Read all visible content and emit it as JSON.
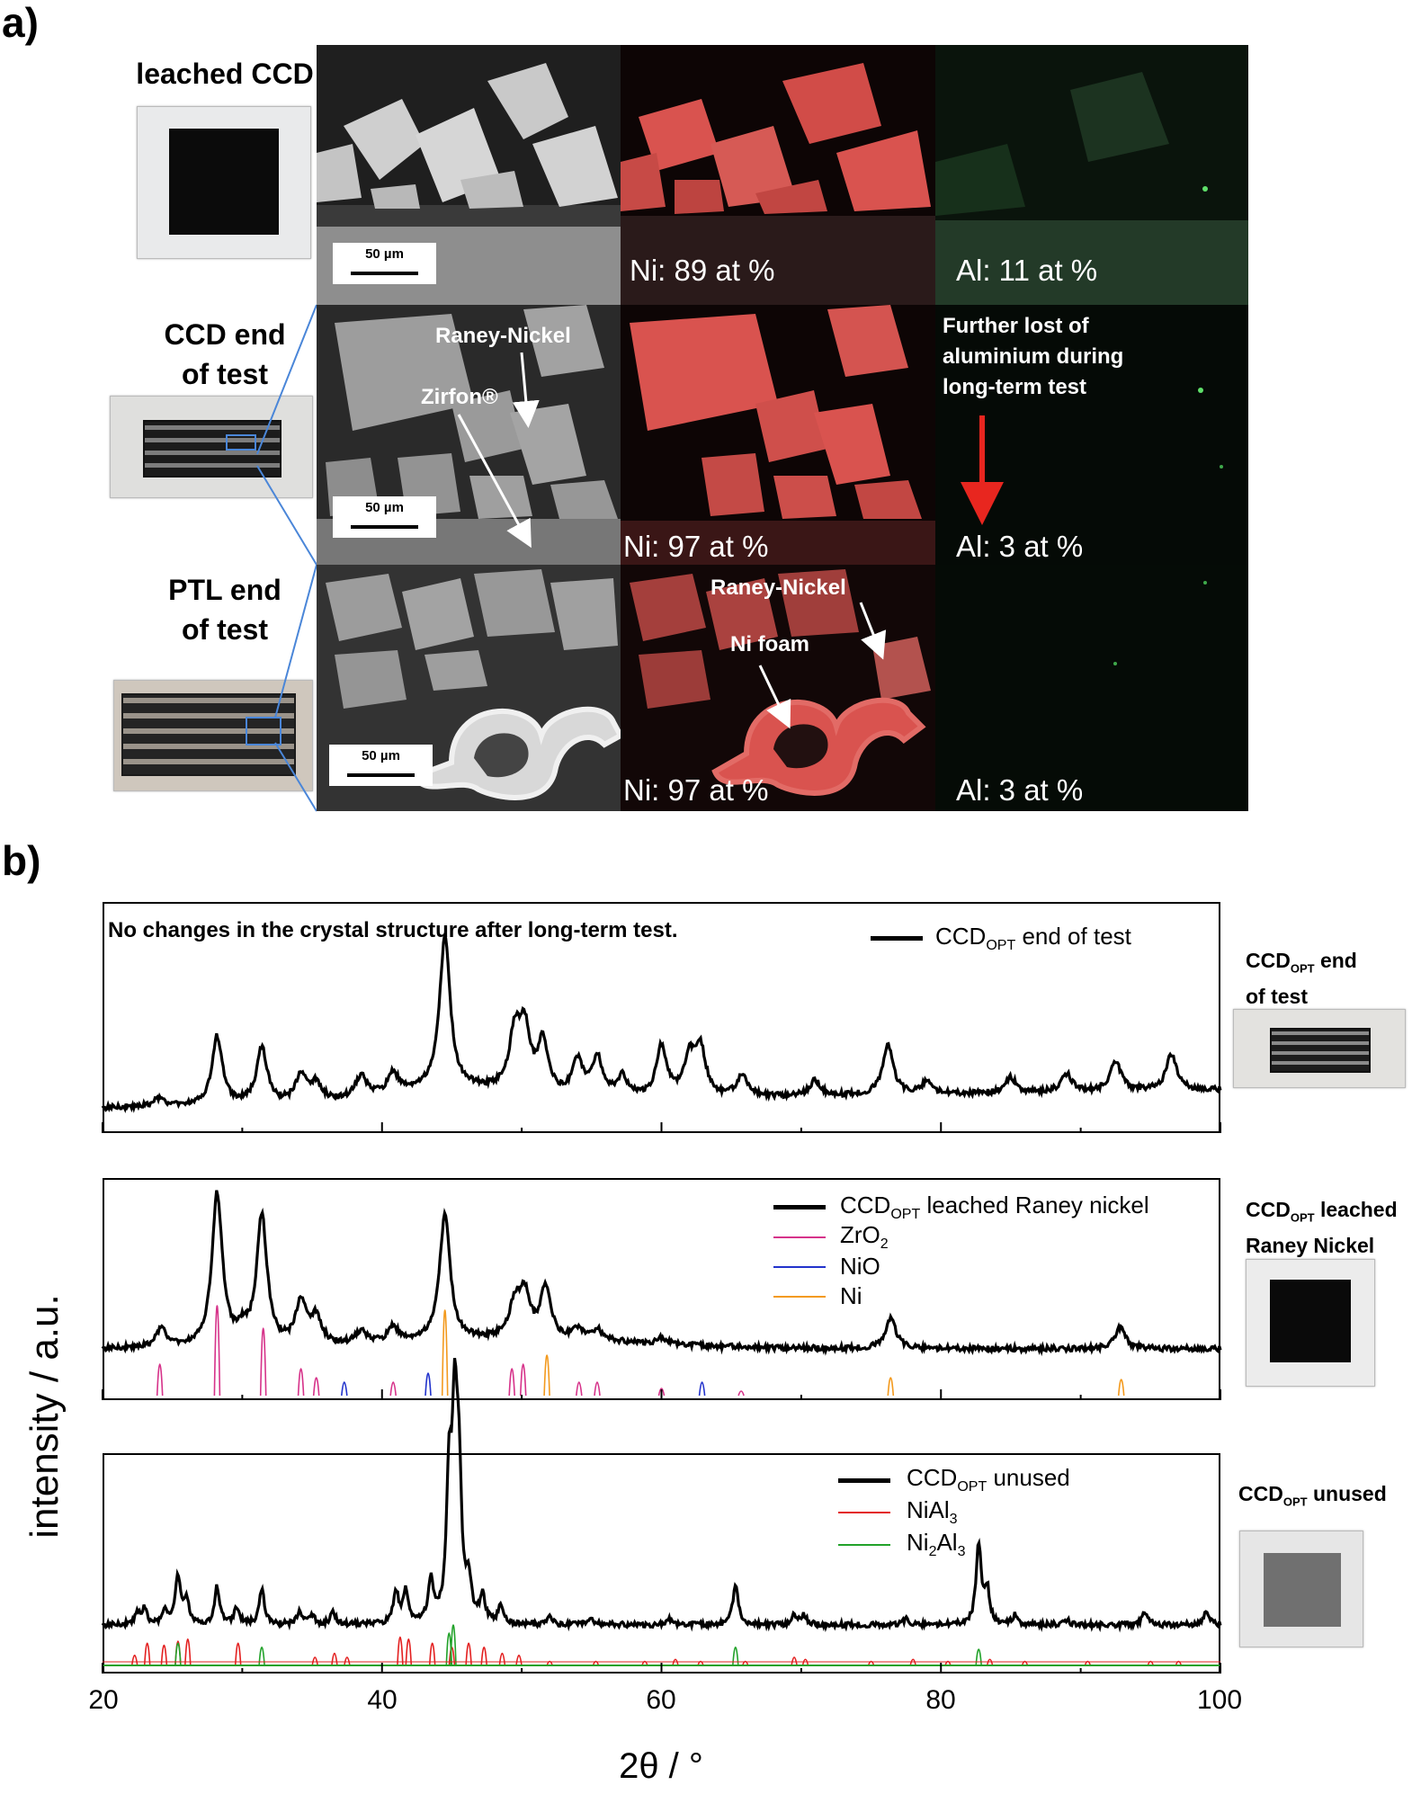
{
  "panel_a": {
    "label": "a)",
    "rows": [
      {
        "label_lines": [
          "leached CCD"
        ],
        "ni_text": "Ni: 89 at %",
        "al_text": "Al: 11 at %",
        "scale_bar": "50 µm"
      },
      {
        "label_lines": [
          "CCD end",
          "of test"
        ],
        "ni_text": "Ni: 97 at %",
        "al_text": "Al: 3 at %",
        "scale_bar": "50 µm",
        "annotations": {
          "raney": "Raney-Nickel",
          "zirfon": "Zirfon®"
        }
      },
      {
        "label_lines": [
          "PTL end",
          "of test"
        ],
        "ni_text": "Ni: 97 at %",
        "al_text": "Al: 3 at %",
        "scale_bar": "50 µm",
        "annotations": {
          "raney": "Raney-Nickel",
          "foam": "Ni foam"
        }
      }
    ],
    "note_lines": [
      "Further lost of",
      "aluminium during",
      "long-term test"
    ],
    "colors": {
      "ni_map": "#d9534f",
      "al_map": "#3aa35a",
      "arrow": "#e8261f",
      "box": "#4a86d8"
    }
  },
  "panel_b": {
    "label": "b)",
    "y_axis_label": "intensity / a.u.",
    "x_axis_label": "2θ / °",
    "x_ticks": [
      "20",
      "40",
      "60",
      "80",
      "100"
    ],
    "headline": "No changes in the crystal structure after long-term test.",
    "colors": {
      "data": "#000000",
      "ZrO2": "#d6338a",
      "NiO": "#2233cc",
      "Ni": "#f39a1e",
      "NiAl3": "#e32020",
      "Ni2Al3": "#22a22a"
    }
  },
  "chart_data": [
    {
      "type": "line",
      "xlim": [
        20,
        100
      ],
      "series": [
        {
          "name": "CCD_OPT end of test",
          "peaks": [
            [
              24,
              0.05
            ],
            [
              28.2,
              0.45
            ],
            [
              31.4,
              0.37
            ],
            [
              34.2,
              0.18
            ],
            [
              35.3,
              0.12
            ],
            [
              38.5,
              0.14
            ],
            [
              40.8,
              0.13
            ],
            [
              44.5,
              1.0
            ],
            [
              49.5,
              0.37
            ],
            [
              50.2,
              0.39
            ],
            [
              51.5,
              0.33
            ],
            [
              54,
              0.22
            ],
            [
              55.4,
              0.25
            ],
            [
              57.2,
              0.13
            ],
            [
              60,
              0.33
            ],
            [
              62,
              0.25
            ],
            [
              62.8,
              0.3
            ],
            [
              65.8,
              0.14
            ],
            [
              71,
              0.1
            ],
            [
              76.2,
              0.33
            ],
            [
              79,
              0.08
            ],
            [
              85,
              0.1
            ],
            [
              89,
              0.12
            ],
            [
              92.5,
              0.2
            ],
            [
              96.5,
              0.24
            ]
          ]
        }
      ]
    },
    {
      "type": "line",
      "xlim": [
        20,
        100
      ],
      "series": [
        {
          "name": "CCD_OPT leached Raney nickel",
          "peaks": [
            [
              24.2,
              0.12
            ],
            [
              28.2,
              1.0
            ],
            [
              30,
              0.08
            ],
            [
              31.4,
              0.85
            ],
            [
              34.2,
              0.28
            ],
            [
              35.3,
              0.18
            ],
            [
              38.5,
              0.08
            ],
            [
              40.8,
              0.1
            ],
            [
              44.5,
              0.83
            ],
            [
              49.5,
              0.22
            ],
            [
              50.2,
              0.28
            ],
            [
              51.7,
              0.33
            ],
            [
              54,
              0.06
            ],
            [
              55.4,
              0.07
            ],
            [
              60,
              0.04
            ],
            [
              76.4,
              0.2
            ],
            [
              92.8,
              0.14
            ]
          ]
        },
        {
          "name": "ZrO2",
          "sticks": [
            [
              24.1,
              0.35
            ],
            [
              28.2,
              1.0
            ],
            [
              31.5,
              0.75
            ],
            [
              34.2,
              0.3
            ],
            [
              35.3,
              0.2
            ],
            [
              40.8,
              0.15
            ],
            [
              49.3,
              0.3
            ],
            [
              50.1,
              0.35
            ],
            [
              54.1,
              0.15
            ],
            [
              55.4,
              0.15
            ],
            [
              60,
              0.08
            ],
            [
              65.7,
              0.05
            ]
          ]
        },
        {
          "name": "NiO",
          "sticks": [
            [
              37.3,
              0.15
            ],
            [
              43.3,
              0.25
            ],
            [
              62.9,
              0.15
            ]
          ]
        },
        {
          "name": "Ni",
          "sticks": [
            [
              44.5,
              0.95
            ],
            [
              51.8,
              0.45
            ],
            [
              76.4,
              0.2
            ],
            [
              92.9,
              0.18
            ]
          ]
        }
      ]
    },
    {
      "type": "line",
      "xlim": [
        20,
        100
      ],
      "series": [
        {
          "name": "CCD_OPT unused",
          "peaks": [
            [
              22.5,
              0.06
            ],
            [
              23,
              0.08
            ],
            [
              24.5,
              0.07
            ],
            [
              25.4,
              0.25
            ],
            [
              26,
              0.13
            ],
            [
              28.2,
              0.2
            ],
            [
              29.6,
              0.09
            ],
            [
              31.4,
              0.19
            ],
            [
              34.1,
              0.07
            ],
            [
              35,
              0.05
            ],
            [
              36.5,
              0.07
            ],
            [
              41,
              0.17
            ],
            [
              41.7,
              0.17
            ],
            [
              43.5,
              0.22
            ],
            [
              44.8,
              0.7
            ],
            [
              45.2,
              1.0
            ],
            [
              45.5,
              0.7
            ],
            [
              46.2,
              0.2
            ],
            [
              47.2,
              0.14
            ],
            [
              48.5,
              0.09
            ],
            [
              52,
              0.04
            ],
            [
              55,
              0.03
            ],
            [
              60.5,
              0.03
            ],
            [
              65.3,
              0.22
            ],
            [
              69.5,
              0.05
            ],
            [
              70.2,
              0.05
            ],
            [
              77.5,
              0.03
            ],
            [
              82.7,
              0.42
            ],
            [
              83.3,
              0.18
            ],
            [
              85.3,
              0.05
            ],
            [
              89,
              0.03
            ],
            [
              94.6,
              0.07
            ],
            [
              99,
              0.08
            ]
          ]
        },
        {
          "name": "NiAl3",
          "sticks": [
            [
              22.3,
              0.25
            ],
            [
              23.2,
              0.55
            ],
            [
              24.4,
              0.5
            ],
            [
              25.4,
              0.6
            ],
            [
              26.1,
              0.65
            ],
            [
              29.7,
              0.55
            ],
            [
              35.2,
              0.2
            ],
            [
              36.6,
              0.3
            ],
            [
              37.5,
              0.2
            ],
            [
              41.3,
              0.7
            ],
            [
              41.9,
              0.65
            ],
            [
              43.6,
              0.55
            ],
            [
              45,
              0.45
            ],
            [
              46.2,
              0.55
            ],
            [
              47.3,
              0.45
            ],
            [
              48.6,
              0.3
            ],
            [
              49.8,
              0.25
            ],
            [
              52,
              0.1
            ],
            [
              55.3,
              0.1
            ],
            [
              58.8,
              0.1
            ],
            [
              61,
              0.15
            ],
            [
              62.8,
              0.1
            ],
            [
              66,
              0.1
            ],
            [
              69.5,
              0.2
            ],
            [
              70.3,
              0.15
            ],
            [
              75,
              0.1
            ],
            [
              78,
              0.15
            ],
            [
              80.5,
              0.1
            ],
            [
              83.5,
              0.15
            ],
            [
              86,
              0.1
            ],
            [
              90.5,
              0.1
            ],
            [
              95,
              0.1
            ],
            [
              97,
              0.1
            ]
          ]
        },
        {
          "name": "Ni2Al3",
          "sticks": [
            [
              25.4,
              0.55
            ],
            [
              31.4,
              0.45
            ],
            [
              44.8,
              0.8
            ],
            [
              45.1,
              1.0
            ],
            [
              65.3,
              0.45
            ],
            [
              82.7,
              0.4
            ]
          ]
        }
      ]
    }
  ],
  "xrd_panels": [
    {
      "legend": [
        {
          "sym": "line-thick",
          "base": "CCD",
          "sub": "OPT",
          "rest": " end of test"
        }
      ],
      "side_label_lines": [
        {
          "base": "CCD",
          "sub": "OPT",
          "rest": " end"
        },
        {
          "base": "of test"
        }
      ]
    },
    {
      "legend": [
        {
          "sym": "line-thick",
          "base": "CCD",
          "sub": "OPT",
          "rest": " leached Raney nickel"
        },
        {
          "sym": "ZrO2",
          "base": "ZrO",
          "sub": "2",
          "rest": ""
        },
        {
          "sym": "NiO",
          "base": "NiO"
        },
        {
          "sym": "Ni",
          "base": "Ni"
        }
      ],
      "side_label_lines": [
        {
          "base": "CCD",
          "sub": "OPT",
          "rest": " leached"
        },
        {
          "base": "Raney Nickel"
        }
      ]
    },
    {
      "legend": [
        {
          "sym": "line-thick",
          "base": "CCD",
          "sub": "OPT",
          "rest": " unused"
        },
        {
          "sym": "NiAl3",
          "base": "NiAl",
          "sub": "3",
          "rest": ""
        },
        {
          "sym": "Ni2Al3",
          "base": "Ni",
          "sub": "2",
          "rest": "Al",
          "sub2": "3"
        }
      ],
      "side_label_lines": [
        {
          "base": "CCD",
          "sub": "OPT",
          "rest": " unused"
        }
      ]
    }
  ]
}
